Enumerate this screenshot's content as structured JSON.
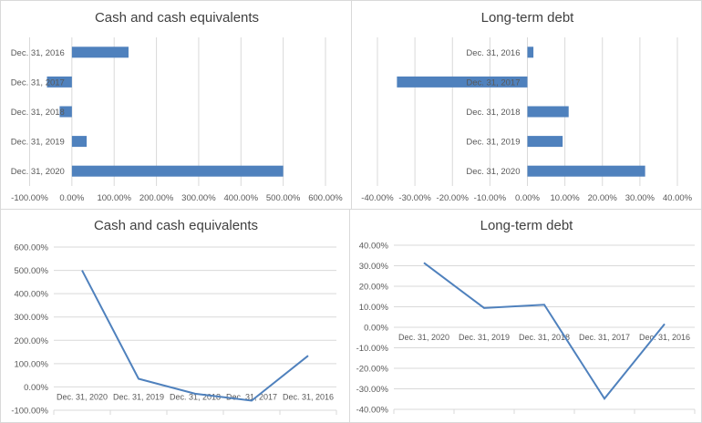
{
  "colors": {
    "series": "#4f81bd",
    "grid": "#d9d9d9",
    "text": "#595959",
    "title": "#404040"
  },
  "chart_data": [
    {
      "type": "bar",
      "orientation": "horizontal",
      "title": "Cash and cash equivalents",
      "categories": [
        "Dec. 31, 2016",
        "Dec. 31, 2017",
        "Dec. 31, 2018",
        "Dec. 31, 2019",
        "Dec. 31, 2020"
      ],
      "values": [
        134,
        -59,
        -29,
        35,
        500
      ],
      "xlim": [
        -100,
        600
      ],
      "ticks": [
        "-100.00%",
        "0.00%",
        "100.00%",
        "200.00%",
        "300.00%",
        "400.00%",
        "500.00%",
        "600.00%"
      ],
      "tick_values": [
        -100,
        0,
        100,
        200,
        300,
        400,
        500,
        600
      ],
      "grid": true
    },
    {
      "type": "bar",
      "orientation": "horizontal",
      "title": "Long-term debt",
      "categories": [
        "Dec. 31, 2016",
        "Dec. 31, 2017",
        "Dec. 31, 2018",
        "Dec. 31, 2019",
        "Dec. 31, 2020"
      ],
      "values": [
        1.6,
        -34.8,
        11.0,
        9.4,
        31.4
      ],
      "xlim": [
        -40,
        40
      ],
      "ticks": [
        "-40.00%",
        "-30.00%",
        "-20.00%",
        "-10.00%",
        "0.00%",
        "10.00%",
        "20.00%",
        "30.00%",
        "40.00%"
      ],
      "tick_values": [
        -40,
        -30,
        -20,
        -10,
        0,
        10,
        20,
        30,
        40
      ],
      "grid": true
    },
    {
      "type": "line",
      "title": "Cash and cash equivalents",
      "categories": [
        "Dec. 31, 2020",
        "Dec. 31, 2019",
        "Dec. 31, 2018",
        "Dec. 31, 2017",
        "Dec. 31, 2016"
      ],
      "values": [
        500,
        35,
        -29,
        -59,
        134
      ],
      "ylim": [
        -100,
        600
      ],
      "ticks": [
        "600.00%",
        "500.00%",
        "400.00%",
        "300.00%",
        "200.00%",
        "100.00%",
        "0.00%",
        "-100.00%"
      ],
      "tick_values": [
        600,
        500,
        400,
        300,
        200,
        100,
        0,
        -100
      ],
      "grid": true
    },
    {
      "type": "line",
      "title": "Long-term debt",
      "categories": [
        "Dec. 31, 2020",
        "Dec. 31, 2019",
        "Dec. 31, 2018",
        "Dec. 31, 2017",
        "Dec. 31, 2016"
      ],
      "values": [
        31.4,
        9.4,
        11.0,
        -34.8,
        1.6
      ],
      "ylim": [
        -40,
        40
      ],
      "ticks": [
        "40.00%",
        "30.00%",
        "20.00%",
        "10.00%",
        "0.00%",
        "-10.00%",
        "-20.00%",
        "-30.00%",
        "-40.00%"
      ],
      "tick_values": [
        40,
        30,
        20,
        10,
        0,
        -10,
        -20,
        -30,
        -40
      ],
      "grid": true
    }
  ]
}
